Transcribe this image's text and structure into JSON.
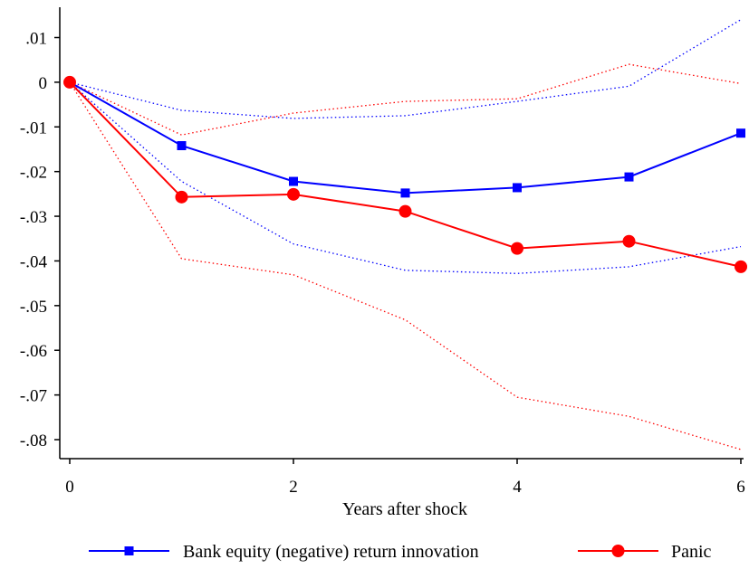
{
  "chart_data": {
    "type": "line",
    "xlabel": "Years after shock",
    "ylabel": "",
    "x": [
      0,
      1,
      2,
      3,
      4,
      5,
      6
    ],
    "xlim": [
      0,
      6
    ],
    "ylim": [
      -0.087,
      0.017
    ],
    "xticks": [
      0,
      2,
      4,
      6
    ],
    "xtick_labels": [
      "0",
      "2",
      "4",
      "6"
    ],
    "yticks": [
      0.01,
      0,
      -0.01,
      -0.02,
      -0.03,
      -0.04,
      -0.05,
      -0.06,
      -0.07,
      -0.08
    ],
    "ytick_labels": [
      ".01",
      "0",
      "-.01",
      "-.02",
      "-.03",
      "-.04",
      "-.05",
      "-.06",
      "-.07",
      "-.08"
    ],
    "grid": false,
    "legend_position": "bottom",
    "series": [
      {
        "name": "Bank equity (negative) return innovation",
        "color": "#0000ff",
        "marker": "square",
        "values": [
          0.0,
          -0.0142,
          -0.0222,
          -0.0248,
          -0.0236,
          -0.0212,
          -0.0114
        ],
        "ci_lower": [
          0.0,
          -0.0222,
          -0.0362,
          -0.0421,
          -0.0428,
          -0.0413,
          -0.0368
        ],
        "ci_upper": [
          0.0,
          -0.0063,
          -0.0081,
          -0.0075,
          -0.0043,
          -0.0009,
          0.014
        ]
      },
      {
        "name": "Panic",
        "color": "#ff0000",
        "marker": "circle",
        "values": [
          0.0,
          -0.0257,
          -0.0251,
          -0.0289,
          -0.0372,
          -0.0356,
          -0.0413
        ],
        "ci_lower": [
          0.0,
          -0.0395,
          -0.0431,
          -0.0532,
          -0.0705,
          -0.0748,
          -0.0822
        ],
        "ci_upper": [
          0.0,
          -0.0118,
          -0.0069,
          -0.0043,
          -0.0037,
          0.004,
          -0.0003
        ]
      }
    ]
  }
}
